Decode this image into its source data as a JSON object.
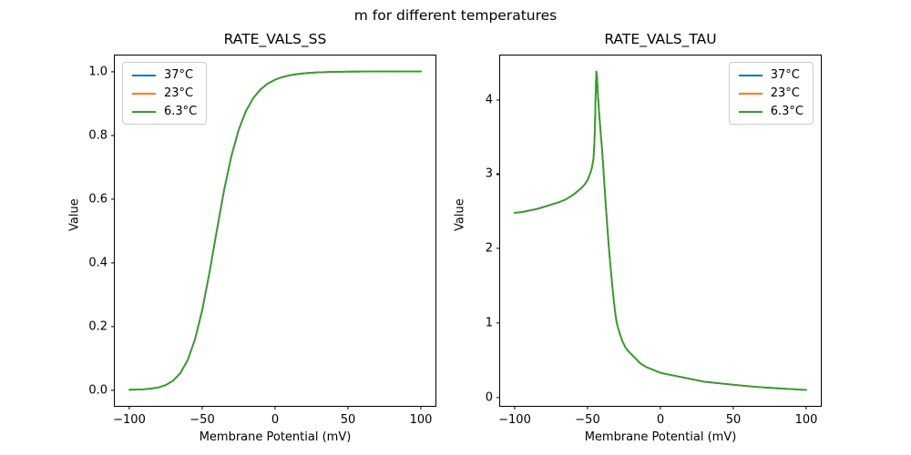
{
  "figure": {
    "suptitle": "m for different temperatures",
    "background": "#ffffff",
    "spine_color": "#000000"
  },
  "chart_data": [
    {
      "type": "line",
      "title": "RATE_VALS_SS",
      "xlabel": "Membrane Potential (mV)",
      "ylabel": "Value",
      "xlim": [
        -110,
        110
      ],
      "ylim": [
        -0.05,
        1.05
      ],
      "grid": false,
      "xticks": [
        {
          "value": -100,
          "label": "−100"
        },
        {
          "value": -50,
          "label": "−50"
        },
        {
          "value": 0,
          "label": "0"
        },
        {
          "value": 50,
          "label": "50"
        },
        {
          "value": 100,
          "label": "100"
        }
      ],
      "yticks": [
        {
          "value": 0.0,
          "label": "0.0"
        },
        {
          "value": 0.2,
          "label": "0.2"
        },
        {
          "value": 0.4,
          "label": "0.4"
        },
        {
          "value": 0.6,
          "label": "0.6"
        },
        {
          "value": 0.8,
          "label": "0.8"
        },
        {
          "value": 1.0,
          "label": "1.0"
        }
      ],
      "legend": {
        "position": "upper-left",
        "entries": [
          {
            "label": "37°C",
            "color": "#1f77b4"
          },
          {
            "label": "23°C",
            "color": "#ff7f0e"
          },
          {
            "label": "6.3°C",
            "color": "#2ca02c"
          }
        ]
      },
      "note": "All three temperature series overlap exactly; only the last-drawn green curve is visible.",
      "x": [
        -100,
        -95,
        -90,
        -85,
        -80,
        -75,
        -70,
        -65,
        -60,
        -55,
        -50,
        -45,
        -40,
        -35,
        -30,
        -25,
        -20,
        -15,
        -10,
        -5,
        0,
        5,
        10,
        15,
        20,
        25,
        30,
        35,
        40,
        45,
        50,
        55,
        60,
        65,
        70,
        75,
        80,
        85,
        90,
        95,
        100
      ],
      "y_shared": [
        0.0005,
        0.0011,
        0.0021,
        0.0041,
        0.008,
        0.0154,
        0.0289,
        0.0529,
        0.0936,
        0.158,
        0.2508,
        0.3693,
        0.5006,
        0.6273,
        0.734,
        0.8167,
        0.8757,
        0.9163,
        0.9436,
        0.9619,
        0.9741,
        0.9823,
        0.9878,
        0.9916,
        0.9941,
        0.9959,
        0.9971,
        0.9979,
        0.9985,
        0.999,
        0.9993,
        0.9995,
        0.9996,
        0.9997,
        0.9998,
        0.9999,
        0.9999,
        0.9999,
        1.0,
        1.0,
        1.0
      ],
      "series": [
        {
          "name": "37°C",
          "color": "#1f77b4",
          "y": "y_shared"
        },
        {
          "name": "23°C",
          "color": "#ff7f0e",
          "y": "y_shared"
        },
        {
          "name": "6.3°C",
          "color": "#2ca02c",
          "y": "y_shared"
        }
      ]
    },
    {
      "type": "line",
      "title": "RATE_VALS_TAU",
      "xlabel": "Membrane Potential (mV)",
      "ylabel": "Value",
      "xlim": [
        -110,
        110
      ],
      "ylim": [
        -0.114,
        4.594
      ],
      "grid": false,
      "xticks": [
        {
          "value": -100,
          "label": "−100"
        },
        {
          "value": -50,
          "label": "−50"
        },
        {
          "value": 0,
          "label": "0"
        },
        {
          "value": 50,
          "label": "50"
        },
        {
          "value": 100,
          "label": "100"
        }
      ],
      "yticks": [
        {
          "value": 0,
          "label": "0"
        },
        {
          "value": 1,
          "label": "1"
        },
        {
          "value": 2,
          "label": "2"
        },
        {
          "value": 3,
          "label": "3"
        },
        {
          "value": 4,
          "label": "4"
        }
      ],
      "legend": {
        "position": "upper-right",
        "entries": [
          {
            "label": "37°C",
            "color": "#1f77b4"
          },
          {
            "label": "23°C",
            "color": "#ff7f0e"
          },
          {
            "label": "6.3°C",
            "color": "#2ca02c"
          }
        ]
      },
      "note": "All three temperature series overlap exactly; only the last-drawn green curve is visible. Peak ≈ 4.38 at ≈ −44 mV.",
      "x": [
        -100,
        -95,
        -90,
        -85,
        -80,
        -75,
        -70,
        -65,
        -60,
        -55,
        -52,
        -50,
        -48,
        -47,
        -46,
        -45.5,
        -45,
        -44.5,
        -44,
        -43.5,
        -43,
        -42,
        -41,
        -40,
        -39,
        -38,
        -37,
        -36,
        -35,
        -34,
        -33,
        -32,
        -31,
        -30,
        -28,
        -26,
        -24,
        -22,
        -20,
        -17,
        -14,
        -10,
        -5,
        0,
        5,
        10,
        15,
        20,
        25,
        30,
        35,
        40,
        45,
        50,
        60,
        70,
        80,
        90,
        100
      ],
      "y_shared": [
        2.48,
        2.49,
        2.51,
        2.53,
        2.56,
        2.59,
        2.62,
        2.66,
        2.72,
        2.8,
        2.86,
        2.92,
        3.02,
        3.09,
        3.2,
        3.35,
        3.6,
        4.05,
        4.38,
        4.3,
        4.1,
        3.8,
        3.55,
        3.32,
        3.02,
        2.72,
        2.44,
        2.17,
        1.92,
        1.7,
        1.49,
        1.3,
        1.13,
        1.0,
        0.86,
        0.75,
        0.67,
        0.62,
        0.58,
        0.52,
        0.46,
        0.41,
        0.37,
        0.33,
        0.31,
        0.29,
        0.27,
        0.25,
        0.23,
        0.21,
        0.2,
        0.19,
        0.18,
        0.17,
        0.15,
        0.135,
        0.122,
        0.111,
        0.1
      ],
      "series": [
        {
          "name": "37°C",
          "color": "#1f77b4",
          "y": "y_shared"
        },
        {
          "name": "23°C",
          "color": "#ff7f0e",
          "y": "y_shared"
        },
        {
          "name": "6.3°C",
          "color": "#2ca02c",
          "y": "y_shared"
        }
      ]
    }
  ]
}
